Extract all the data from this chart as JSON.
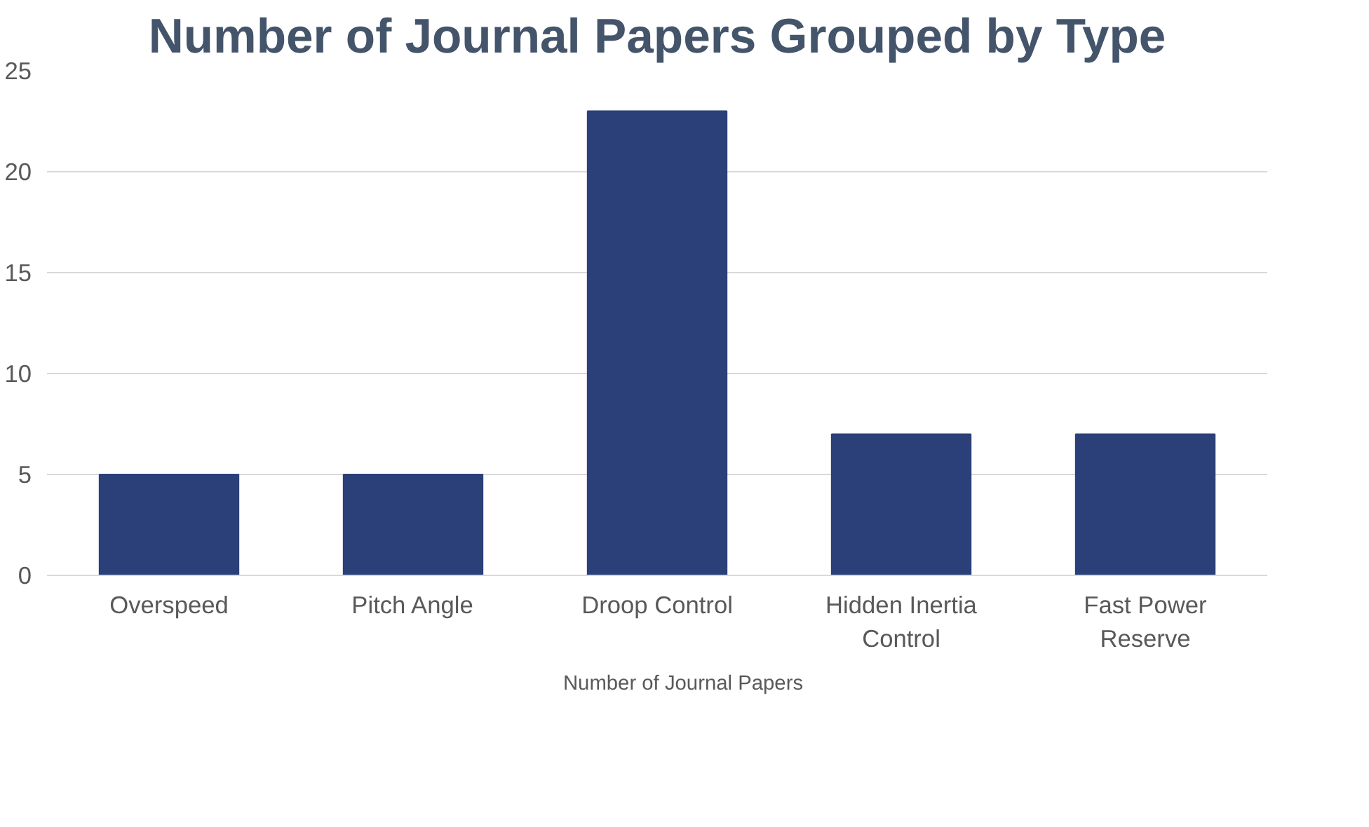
{
  "chart_data": {
    "type": "bar",
    "title": "Number of Journal Papers Grouped by Type",
    "categories": [
      "Overspeed",
      "Pitch Angle",
      "Droop Control",
      "Hidden Inertia Control",
      "Fast Power Reserve"
    ],
    "series": [
      {
        "name": "Number of Journal Papers",
        "color": "#2b4079",
        "values": [
          5,
          5,
          23,
          7,
          7
        ]
      }
    ],
    "ylim": [
      0,
      25
    ],
    "yticks": [
      0,
      5,
      10,
      15,
      20,
      25
    ],
    "grid": "y",
    "legend": "bottom"
  }
}
